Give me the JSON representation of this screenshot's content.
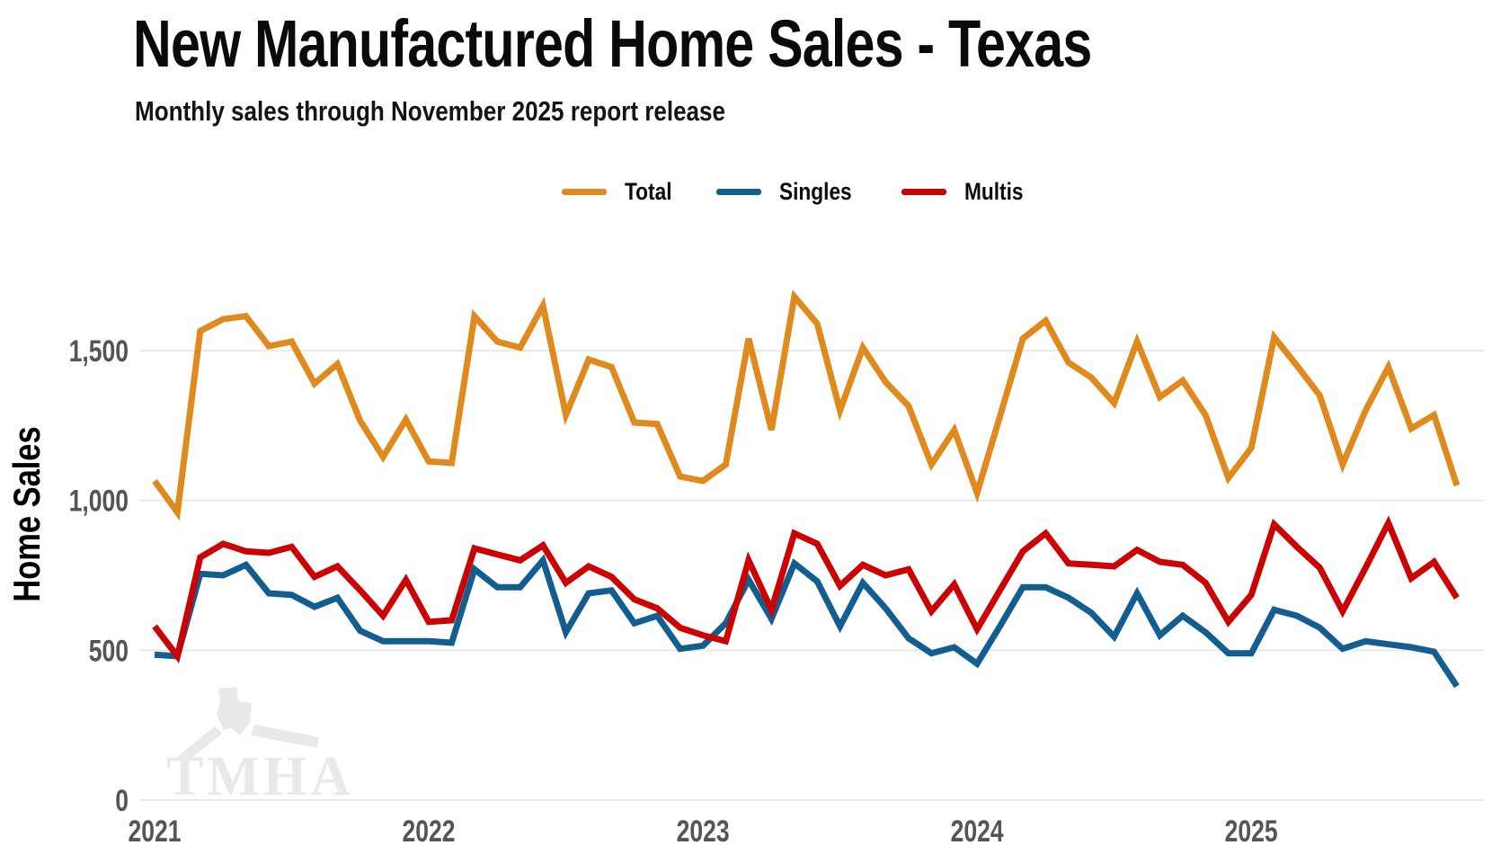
{
  "title": "New Manufactured Home Sales - Texas",
  "subtitle": "Monthly sales through November 2025 report release",
  "watermark_text": "TMHA",
  "legend": [
    {
      "label": "Total",
      "color": "#E08A1E"
    },
    {
      "label": "Singles",
      "color": "#135E90"
    },
    {
      "label": "Multis",
      "color": "#CC0202"
    }
  ],
  "chart_data": {
    "type": "line",
    "title": "New Manufactured Home Sales - Texas",
    "subtitle": "Monthly sales through November 2025 report release",
    "ylabel": "Home Sales",
    "xlabel": "",
    "x_start": "2021-01",
    "x_end": "2025-10",
    "x_unit": "month",
    "x_tick_labels": [
      "2021",
      "2022",
      "2023",
      "2024",
      "2025"
    ],
    "x_tick_month_index": [
      0,
      12,
      24,
      36,
      48
    ],
    "y_ticks": [
      {
        "value": 0,
        "label": "0"
      },
      {
        "value": 500,
        "label": "500"
      },
      {
        "value": 1000,
        "label": "1,000"
      },
      {
        "value": 1500,
        "label": "1,500"
      }
    ],
    "ylim": [
      0,
      1800
    ],
    "grid": "horizontal",
    "legend_position": "top",
    "series": [
      {
        "name": "Total",
        "color": "#E08A1E",
        "values": [
          1065,
          960,
          1565,
          1605,
          1615,
          1515,
          1530,
          1390,
          1455,
          1265,
          1145,
          1270,
          1130,
          1125,
          1615,
          1530,
          1510,
          1650,
          1285,
          1470,
          1445,
          1260,
          1255,
          1080,
          1065,
          1120,
          1540,
          1235,
          1680,
          1590,
          1300,
          1510,
          1395,
          1315,
          1120,
          1235,
          1025,
          1280,
          1540,
          1600,
          1460,
          1410,
          1325,
          1530,
          1345,
          1400,
          1285,
          1075,
          1175,
          1545,
          1450,
          1350,
          1120,
          1300,
          1445,
          1240,
          1285,
          1050
        ]
      },
      {
        "name": "Singles",
        "color": "#135E90",
        "values": [
          485,
          480,
          755,
          750,
          785,
          690,
          685,
          645,
          675,
          565,
          530,
          530,
          530,
          525,
          770,
          710,
          710,
          800,
          560,
          690,
          700,
          590,
          615,
          505,
          515,
          590,
          735,
          605,
          790,
          730,
          580,
          725,
          640,
          540,
          490,
          510,
          455,
          580,
          710,
          710,
          675,
          625,
          545,
          690,
          550,
          615,
          560,
          490,
          490,
          635,
          615,
          575,
          505,
          530,
          520,
          510,
          495,
          380
        ]
      },
      {
        "name": "Multis",
        "color": "#CC0202",
        "values": [
          580,
          480,
          810,
          855,
          830,
          825,
          845,
          745,
          780,
          700,
          615,
          735,
          595,
          600,
          840,
          820,
          800,
          850,
          725,
          780,
          745,
          670,
          640,
          575,
          550,
          530,
          800,
          635,
          890,
          855,
          715,
          785,
          750,
          770,
          630,
          720,
          570,
          700,
          830,
          890,
          790,
          785,
          780,
          835,
          795,
          785,
          725,
          595,
          685,
          920,
          845,
          775,
          630,
          775,
          925,
          740,
          795,
          675
        ]
      }
    ]
  }
}
